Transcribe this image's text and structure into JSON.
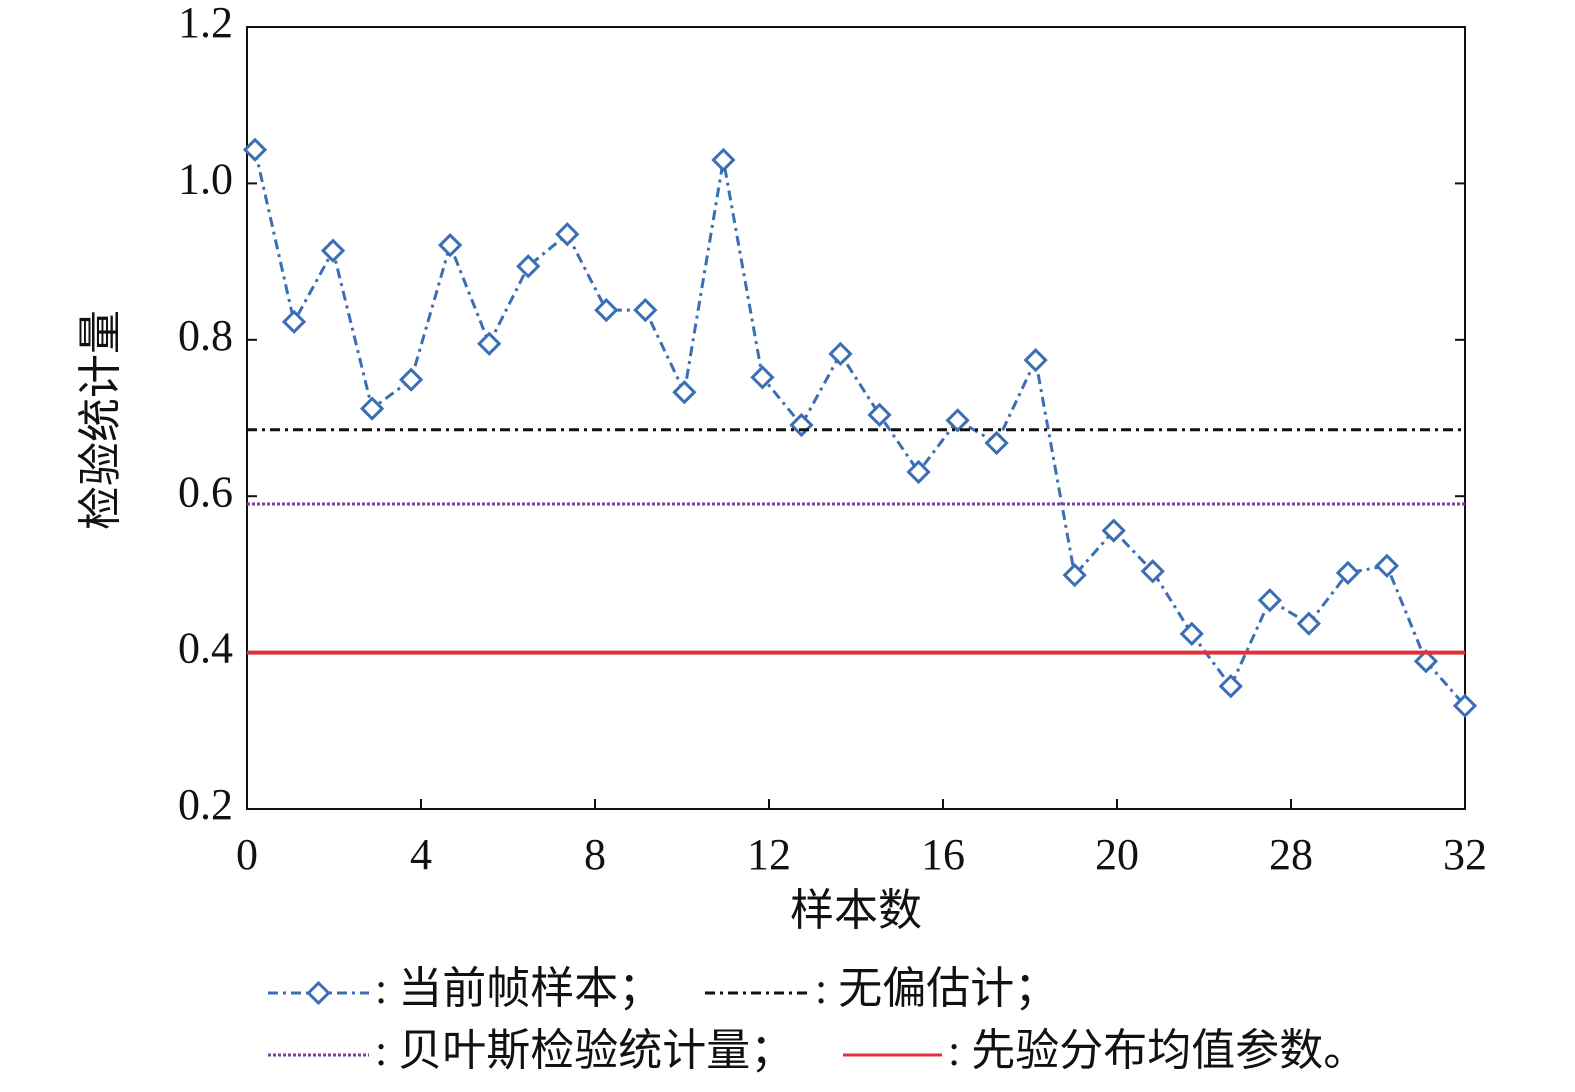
{
  "chart_data": {
    "type": "line",
    "x_label": "样本数",
    "y_label": "检验统计量",
    "xticks": [
      0,
      4,
      8,
      12,
      16,
      20,
      28,
      32
    ],
    "ylim": [
      0.2,
      1.2
    ],
    "yticks": [
      {
        "value": 0.2,
        "label": "0.2"
      },
      {
        "value": 0.4,
        "label": "0.4"
      },
      {
        "value": 0.6,
        "label": "0.6"
      },
      {
        "value": 0.8,
        "label": "0.8"
      },
      {
        "value": 1.0,
        "label": "1.0"
      },
      {
        "value": 1.2,
        "label": "1.2"
      }
    ],
    "series": [
      {
        "name": ": 当前帧样本；",
        "color": "#3a6fb5",
        "style": "dashdot",
        "marker": "diamond",
        "values": [
          1.043,
          0.823,
          0.914,
          0.712,
          0.749,
          0.921,
          0.795,
          0.894,
          0.935,
          0.838,
          0.838,
          0.733,
          1.03,
          0.752,
          0.691,
          0.782,
          0.704,
          0.631,
          0.697,
          0.668,
          0.774,
          0.499,
          0.556,
          0.504,
          0.424,
          0.357,
          0.467,
          0.437,
          0.502,
          0.511,
          0.389,
          0.332
        ]
      },
      {
        "name": ": 无偏估计；",
        "color": "#111111",
        "style": "dashdot",
        "value": 0.685
      },
      {
        "name": ": 贝叶斯检验统计量；",
        "color": "#7a3fa0",
        "style": "dotted",
        "value": 0.59
      },
      {
        "name": ": 先验分布均值参数。",
        "color": "#e0303a",
        "style": "solid",
        "value": 0.4
      }
    ]
  }
}
